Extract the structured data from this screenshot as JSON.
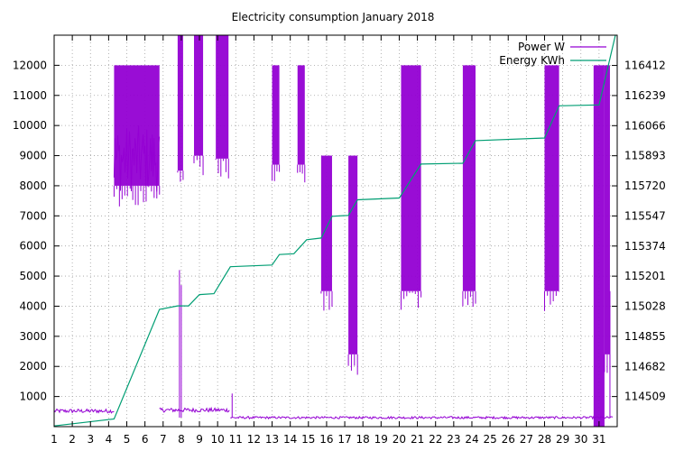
{
  "chart_data": {
    "type": "line",
    "title": "Electricity consumption January 2018",
    "xlabel": "",
    "ylabel": "",
    "y2label": "",
    "grid": true,
    "legend_placement": "top-right",
    "x_range": [
      1,
      32
    ],
    "y_range": [
      0,
      13000
    ],
    "y2_range": [
      114336,
      116586
    ],
    "x_ticks": [
      "1",
      "2",
      "3",
      "4",
      "5",
      "6",
      "7",
      "8",
      "9",
      "10",
      "11",
      "12",
      "13",
      "14",
      "15",
      "16",
      "17",
      "18",
      "19",
      "20",
      "21",
      "22",
      "23",
      "24",
      "25",
      "26",
      "27",
      "28",
      "29",
      "30",
      "31"
    ],
    "y_ticks": [
      1000,
      2000,
      3000,
      4000,
      5000,
      6000,
      7000,
      8000,
      9000,
      10000,
      11000,
      12000
    ],
    "y2_ticks": [
      "114509",
      "114682",
      "114855",
      "115028",
      "115201",
      "115374",
      "115547",
      "115720",
      "115893",
      "116066",
      "116239",
      "116412"
    ],
    "series": [
      {
        "name": "Power W",
        "color": "#9400d3",
        "axis": "left",
        "baseline_segments": [
          {
            "x_start": 1.0,
            "x_end": 4.3,
            "level": 520
          },
          {
            "x_start": 4.3,
            "x_end": 6.8,
            "level": 8900
          },
          {
            "x_start": 6.8,
            "x_end": 10.7,
            "level": 550
          },
          {
            "x_start": 10.7,
            "x_end": 31.8,
            "level": 300
          }
        ],
        "active_blocks": [
          {
            "x_start": 4.3,
            "x_end": 6.8,
            "low": 8000,
            "high": 12000
          },
          {
            "x_start": 7.8,
            "x_end": 8.1,
            "low": 8500,
            "high": 13000
          },
          {
            "x_start": 8.7,
            "x_end": 9.2,
            "low": 9000,
            "high": 13000
          },
          {
            "x_start": 9.9,
            "x_end": 10.6,
            "low": 8900,
            "high": 13000
          },
          {
            "x_start": 13.0,
            "x_end": 13.4,
            "low": 8700,
            "high": 12000
          },
          {
            "x_start": 14.4,
            "x_end": 14.8,
            "low": 8700,
            "high": 12000
          },
          {
            "x_start": 15.7,
            "x_end": 16.3,
            "low": 4500,
            "high": 9000
          },
          {
            "x_start": 17.2,
            "x_end": 17.7,
            "low": 2400,
            "high": 9000
          },
          {
            "x_start": 20.1,
            "x_end": 21.2,
            "low": 4500,
            "high": 12000
          },
          {
            "x_start": 23.5,
            "x_end": 24.2,
            "low": 4500,
            "high": 12000
          },
          {
            "x_start": 28.0,
            "x_end": 28.8,
            "low": 4500,
            "high": 12000
          },
          {
            "x_start": 30.7,
            "x_end": 31.3,
            "low": 0,
            "high": 12000
          },
          {
            "x_start": 31.3,
            "x_end": 31.6,
            "low": 2400,
            "high": 12000
          }
        ],
        "spikes": [
          {
            "x": 7.9,
            "value": 5200
          },
          {
            "x": 8.0,
            "value": 4700
          },
          {
            "x": 10.8,
            "value": 1100
          },
          {
            "x": 31.6,
            "value": 4500
          }
        ]
      },
      {
        "name": "Energy KWh",
        "color": "#009e73",
        "axis": "right",
        "x": [
          1.0,
          4.3,
          6.8,
          7.8,
          8.4,
          9.0,
          9.8,
          10.7,
          13.0,
          13.4,
          14.2,
          14.9,
          15.7,
          16.3,
          17.2,
          17.7,
          20.0,
          21.2,
          23.5,
          24.2,
          28.0,
          28.8,
          31.0,
          31.9
        ],
        "values": [
          114340,
          114380,
          115010,
          115030,
          115030,
          115095,
          115100,
          115255,
          115265,
          115325,
          115330,
          115410,
          115420,
          115545,
          115550,
          115640,
          115650,
          115845,
          115850,
          115980,
          115995,
          116180,
          116185,
          116586
        ]
      }
    ]
  }
}
